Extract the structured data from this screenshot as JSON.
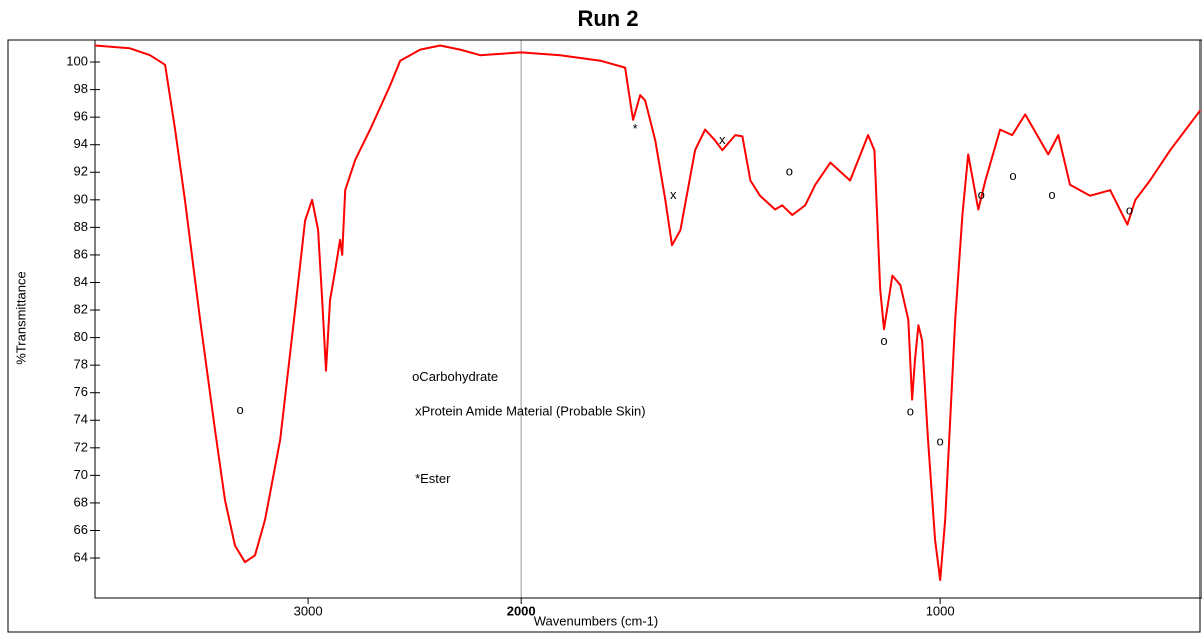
{
  "chart_data": {
    "type": "line",
    "title": "Run 2",
    "x_label": "Wavenumbers (cm-1)",
    "y_label": "%Transmittance",
    "xlim": [
      4000,
      375
    ],
    "x_scale_break": 2000,
    "xticks": [
      3000,
      2000,
      1000
    ],
    "ylim": [
      61.1,
      101.6
    ],
    "yticks": [
      64,
      66,
      68,
      70,
      72,
      74,
      76,
      78,
      80,
      82,
      84,
      86,
      88,
      90,
      92,
      94,
      96,
      98,
      100
    ],
    "x": [
      4000,
      3836,
      3742,
      3671,
      3624,
      3578,
      3507,
      3437,
      3390,
      3343,
      3296,
      3249,
      3202,
      3131,
      3061,
      3014,
      2981,
      2953,
      2934,
      2916,
      2897,
      2873,
      2850,
      2840,
      2826,
      2779,
      2709,
      2615,
      2568,
      2474,
      2380,
      2286,
      2192,
      2000,
      1907,
      1811,
      1752,
      1740,
      1733,
      1716,
      1704,
      1680,
      1656,
      1640,
      1620,
      1585,
      1561,
      1537,
      1520,
      1489,
      1472,
      1453,
      1430,
      1394,
      1377,
      1353,
      1322,
      1298,
      1262,
      1215,
      1172,
      1157,
      1143,
      1134,
      1114,
      1095,
      1076,
      1067,
      1060,
      1052,
      1043,
      1029,
      1012,
      1000,
      988,
      964,
      947,
      933,
      909,
      892,
      857,
      828,
      797,
      761,
      742,
      718,
      690,
      642,
      594,
      553,
      534,
      499,
      451,
      379
    ],
    "series": [
      {
        "color": "#ff0000",
        "values": [
          101.2,
          101.0,
          100.5,
          99.8,
          95.1,
          90.0,
          81.3,
          73.3,
          68.2,
          64.9,
          63.7,
          64.2,
          66.8,
          72.6,
          82.0,
          88.5,
          90.0,
          87.8,
          82.7,
          77.6,
          82.7,
          84.9,
          87.1,
          86.0,
          90.7,
          92.9,
          95.1,
          98.3,
          100.1,
          100.9,
          101.2,
          100.9,
          100.5,
          100.7,
          100.5,
          100.1,
          99.6,
          97.2,
          95.8,
          97.6,
          97.2,
          94.3,
          90.0,
          86.7,
          87.8,
          93.6,
          95.1,
          94.3,
          93.6,
          94.7,
          94.6,
          91.4,
          90.3,
          89.3,
          89.6,
          88.9,
          89.6,
          91.1,
          92.7,
          91.4,
          94.7,
          93.6,
          83.5,
          80.6,
          84.5,
          83.8,
          81.3,
          75.5,
          78.4,
          80.9,
          79.8,
          72.6,
          65.3,
          62.4,
          66.8,
          81.3,
          88.9,
          93.3,
          89.3,
          91.4,
          95.1,
          94.7,
          96.2,
          94.3,
          93.3,
          94.7,
          91.1,
          90.3,
          90.7,
          88.2,
          90.0,
          91.4,
          93.6,
          96.5
        ]
      }
    ],
    "annotations": [
      {
        "text": "o",
        "x": 3319,
        "y": 74.7
      },
      {
        "text": "oCarbohydrate",
        "x": 2512,
        "y": 77.1
      },
      {
        "text": "xProtein Amide Material (Probable Skin)",
        "x": 2498,
        "y": 74.6
      },
      {
        "text": "*Ester",
        "x": 2498,
        "y": 69.7
      },
      {
        "text": "*",
        "x": 1728,
        "y": 95.1
      },
      {
        "text": "x",
        "x": 1637,
        "y": 90.3
      },
      {
        "text": "x",
        "x": 1520,
        "y": 94.3
      },
      {
        "text": "o",
        "x": 1360,
        "y": 92.0
      },
      {
        "text": "o",
        "x": 1134,
        "y": 79.7
      },
      {
        "text": "o",
        "x": 1071,
        "y": 74.6
      },
      {
        "text": "o",
        "x": 1000,
        "y": 72.4
      },
      {
        "text": "o",
        "x": 902,
        "y": 90.3
      },
      {
        "text": "o",
        "x": 826,
        "y": 91.7
      },
      {
        "text": "o",
        "x": 733,
        "y": 90.3
      },
      {
        "text": "o",
        "x": 548,
        "y": 89.2
      }
    ]
  }
}
